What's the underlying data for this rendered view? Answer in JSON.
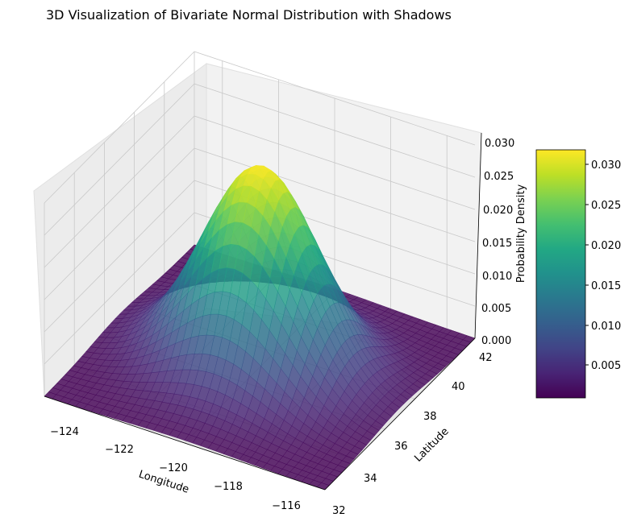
{
  "chart_data": {
    "type": "surface",
    "title": "3D Visualization of Bivariate Normal Distribution with Shadows",
    "xlabel": "Longitude",
    "ylabel": "Latitude",
    "zlabel": "Probability Density",
    "xlim": [
      -125,
      -115
    ],
    "ylim": [
      32,
      42
    ],
    "zlim": [
      0,
      0.03
    ],
    "x_ticks": [
      "−124",
      "−122",
      "−120",
      "−118",
      "−116"
    ],
    "y_ticks": [
      "32",
      "34",
      "36",
      "38",
      "40",
      "42"
    ],
    "z_ticks": [
      "0.000",
      "0.005",
      "0.010",
      "0.015",
      "0.020",
      "0.025",
      "0.030"
    ],
    "colormap": "viridis",
    "surface": {
      "mean_longitude": -120,
      "mean_latitude": 37,
      "peak_density": 0.031
    },
    "colorbar": {
      "ticks": [
        "0.005",
        "0.010",
        "0.015",
        "0.020",
        "0.025",
        "0.030"
      ],
      "range": [
        0.0003,
        0.031
      ]
    },
    "grid": true,
    "colors": {
      "pane": "#f2f2f2",
      "grid": "#c8c8c8"
    }
  }
}
